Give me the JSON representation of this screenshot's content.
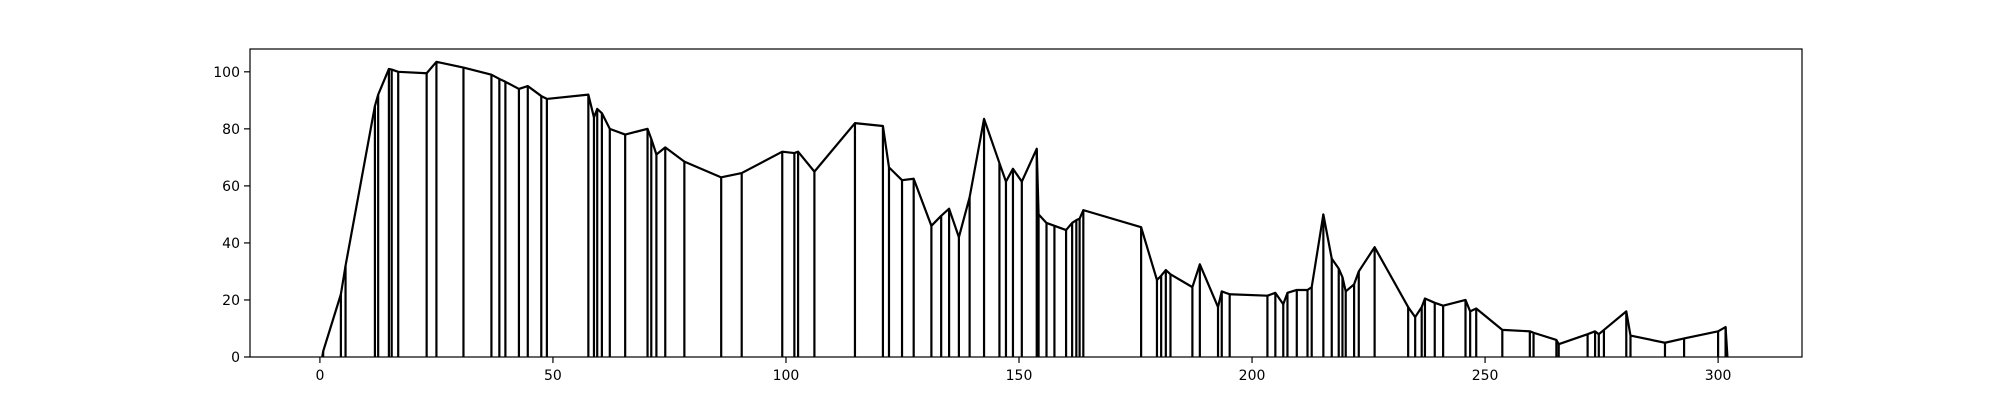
{
  "chart_data": {
    "type": "line",
    "title": "",
    "xlabel": "",
    "ylabel": "",
    "xlim": [
      -15,
      318
    ],
    "ylim": [
      0,
      108
    ],
    "grid": false,
    "x_ticks": [
      0,
      50,
      100,
      150,
      200,
      250,
      300
    ],
    "y_ticks": [
      0,
      20,
      40,
      60,
      80,
      100
    ],
    "series": [
      {
        "color": "#000000",
        "style": "vertical-stems-with-connecting-line",
        "points": [
          {
            "x": 0.5,
            "y": 0
          },
          {
            "x": 0.7,
            "y": 2
          },
          {
            "x": 4.5,
            "y": 22
          },
          {
            "x": 5.5,
            "y": 32
          },
          {
            "x": 11.8,
            "y": 88
          },
          {
            "x": 12.5,
            "y": 92
          },
          {
            "x": 14.8,
            "y": 101
          },
          {
            "x": 15.4,
            "y": 100.8
          },
          {
            "x": 16.8,
            "y": 100
          },
          {
            "x": 22.9,
            "y": 99.5
          },
          {
            "x": 25,
            "y": 103.5
          },
          {
            "x": 30.8,
            "y": 101.5
          },
          {
            "x": 36.8,
            "y": 99
          },
          {
            "x": 38.5,
            "y": 97.5
          },
          {
            "x": 39.8,
            "y": 96.5
          },
          {
            "x": 42.7,
            "y": 94
          },
          {
            "x": 44.6,
            "y": 95
          },
          {
            "x": 47.5,
            "y": 91.5
          },
          {
            "x": 48.7,
            "y": 90.5
          },
          {
            "x": 57.6,
            "y": 92
          },
          {
            "x": 58.8,
            "y": 84
          },
          {
            "x": 59.5,
            "y": 87
          },
          {
            "x": 60.5,
            "y": 85.5
          },
          {
            "x": 62.2,
            "y": 80
          },
          {
            "x": 65.5,
            "y": 78
          },
          {
            "x": 70.3,
            "y": 80
          },
          {
            "x": 71.1,
            "y": 76.5
          },
          {
            "x": 72.2,
            "y": 71
          },
          {
            "x": 74.1,
            "y": 73.5
          },
          {
            "x": 78.2,
            "y": 68.5
          },
          {
            "x": 86.1,
            "y": 63
          },
          {
            "x": 90.5,
            "y": 64.5
          },
          {
            "x": 99.2,
            "y": 72
          },
          {
            "x": 101.8,
            "y": 71.5
          },
          {
            "x": 102.6,
            "y": 72
          },
          {
            "x": 106.1,
            "y": 65
          },
          {
            "x": 114.8,
            "y": 82
          },
          {
            "x": 120.8,
            "y": 81
          },
          {
            "x": 122.1,
            "y": 66.5
          },
          {
            "x": 124.9,
            "y": 62
          },
          {
            "x": 127.4,
            "y": 62.5
          },
          {
            "x": 131.2,
            "y": 46
          },
          {
            "x": 133.3,
            "y": 49.5
          },
          {
            "x": 135,
            "y": 52
          },
          {
            "x": 137.1,
            "y": 42
          },
          {
            "x": 139.4,
            "y": 56
          },
          {
            "x": 142.5,
            "y": 83.5
          },
          {
            "x": 145.8,
            "y": 68
          },
          {
            "x": 147.2,
            "y": 61.5
          },
          {
            "x": 148.7,
            "y": 66
          },
          {
            "x": 150.6,
            "y": 61.5
          },
          {
            "x": 153.8,
            "y": 73
          },
          {
            "x": 154.2,
            "y": 50
          },
          {
            "x": 155.9,
            "y": 47
          },
          {
            "x": 157.6,
            "y": 46
          },
          {
            "x": 160.1,
            "y": 44.5
          },
          {
            "x": 161.4,
            "y": 47
          },
          {
            "x": 162.3,
            "y": 48
          },
          {
            "x": 163,
            "y": 48.5
          },
          {
            "x": 163.8,
            "y": 51.5
          },
          {
            "x": 176.2,
            "y": 45.5
          },
          {
            "x": 179.6,
            "y": 27
          },
          {
            "x": 180.5,
            "y": 28.5
          },
          {
            "x": 181.5,
            "y": 30.5
          },
          {
            "x": 182.5,
            "y": 29
          },
          {
            "x": 187.2,
            "y": 24.5
          },
          {
            "x": 188.8,
            "y": 32.5
          },
          {
            "x": 192.7,
            "y": 17.5
          },
          {
            "x": 193.5,
            "y": 23
          },
          {
            "x": 195.2,
            "y": 22
          },
          {
            "x": 203.3,
            "y": 21.5
          },
          {
            "x": 205,
            "y": 22.5
          },
          {
            "x": 206.7,
            "y": 18.5
          },
          {
            "x": 207.6,
            "y": 22.5
          },
          {
            "x": 209.6,
            "y": 23.5
          },
          {
            "x": 211.9,
            "y": 23.5
          },
          {
            "x": 212.8,
            "y": 24.5
          },
          {
            "x": 215.3,
            "y": 50
          },
          {
            "x": 217.1,
            "y": 34.5
          },
          {
            "x": 218.6,
            "y": 31
          },
          {
            "x": 219.4,
            "y": 28
          },
          {
            "x": 220.1,
            "y": 23
          },
          {
            "x": 221.9,
            "y": 25.5
          },
          {
            "x": 222.9,
            "y": 30
          },
          {
            "x": 226.3,
            "y": 38.5
          },
          {
            "x": 233.5,
            "y": 17.5
          },
          {
            "x": 235,
            "y": 14
          },
          {
            "x": 236.4,
            "y": 17.5
          },
          {
            "x": 237.1,
            "y": 20.5
          },
          {
            "x": 239.2,
            "y": 19
          },
          {
            "x": 241,
            "y": 18
          },
          {
            "x": 245.8,
            "y": 20
          },
          {
            "x": 246.8,
            "y": 16
          },
          {
            "x": 248.1,
            "y": 17
          },
          {
            "x": 253.7,
            "y": 9.5
          },
          {
            "x": 259.6,
            "y": 9
          },
          {
            "x": 260.4,
            "y": 8.5
          },
          {
            "x": 265.3,
            "y": 6
          },
          {
            "x": 265.8,
            "y": 4.5
          },
          {
            "x": 272,
            "y": 8
          },
          {
            "x": 273.6,
            "y": 9
          },
          {
            "x": 274.4,
            "y": 8
          },
          {
            "x": 275.5,
            "y": 9.5
          },
          {
            "x": 280.3,
            "y": 16
          },
          {
            "x": 281.2,
            "y": 7.5
          },
          {
            "x": 288.6,
            "y": 5
          },
          {
            "x": 292.7,
            "y": 6.5
          },
          {
            "x": 300,
            "y": 9
          },
          {
            "x": 301.6,
            "y": 10.5
          },
          {
            "x": 302,
            "y": 0
          }
        ]
      }
    ]
  }
}
